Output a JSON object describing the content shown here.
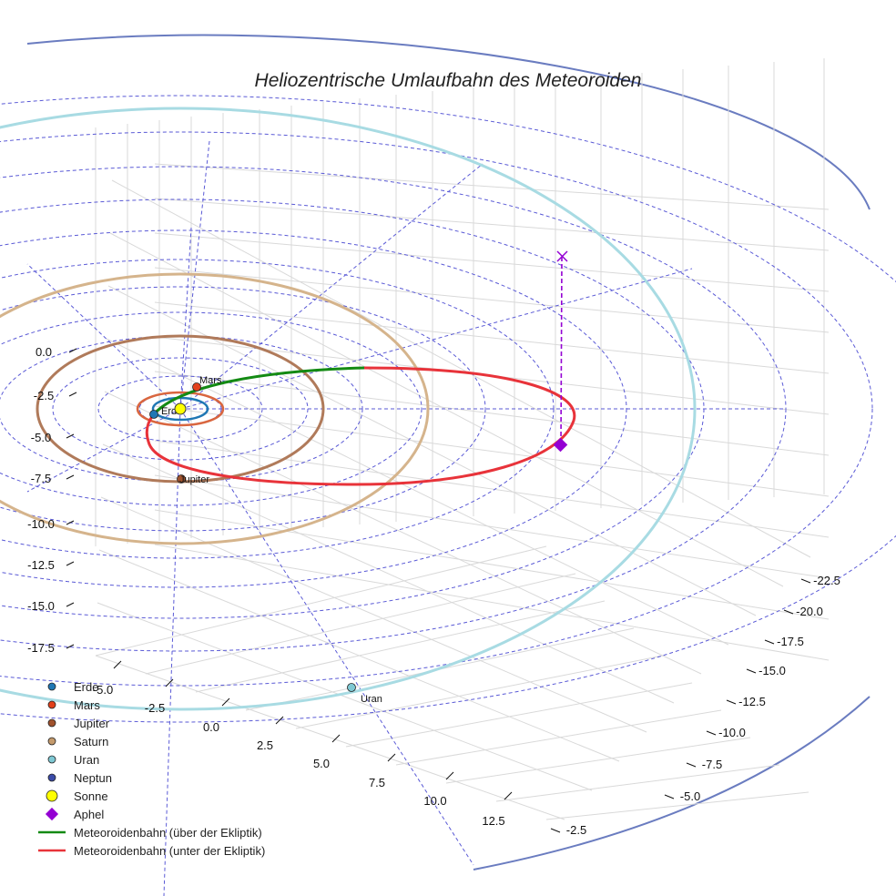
{
  "chart_data": {
    "type": "scatter",
    "title": "Heliozentrische Umlaufbahn des Meteoroiden",
    "xlabel": "",
    "ylabel": "",
    "x_ticks": [
      "-5.0",
      "-2.5",
      "0.0",
      "2.5",
      "5.0",
      "7.5",
      "10.0",
      "12.5"
    ],
    "y_ticks": [
      "-22.5",
      "-20.0",
      "-17.5",
      "-15.0",
      "-12.5",
      "-10.0",
      "-7.5",
      "-5.0",
      "-2.5"
    ],
    "z_ticks": [
      "0.0",
      "-2.5",
      "-5.0",
      "-7.5",
      "-10.0",
      "-12.5",
      "-15.0",
      "-17.5"
    ],
    "planets": [
      {
        "name": "Erde",
        "color": "#1f77b4",
        "orbit_color": "#1f77b4"
      },
      {
        "name": "Mars",
        "color": "#e2401b",
        "orbit_color": "#d9663f"
      },
      {
        "name": "Jupiter",
        "color": "#a0522d",
        "orbit_color": "#b07a5a"
      },
      {
        "name": "Saturn",
        "color": "#c49a6c",
        "orbit_color": "#d5b48c"
      },
      {
        "name": "Uran",
        "color": "#7ec8d3",
        "orbit_color": "#a8dbe3"
      },
      {
        "name": "Neptun",
        "color": "#3b4ba8",
        "orbit_color": "#6a7cc0"
      }
    ],
    "sun": {
      "name": "Sonne",
      "color": "#ffff00"
    },
    "aphel": {
      "name": "Aphel",
      "color": "#9400d3"
    },
    "series": [
      {
        "name": "Meteoroidenbahn (über der Ekliptik)",
        "color": "#138a13"
      },
      {
        "name": "Meteoroidenbahn (unter der Ekliptik)",
        "color": "#e8333a"
      }
    ],
    "grid": true,
    "legend_position": "bottom-left"
  }
}
